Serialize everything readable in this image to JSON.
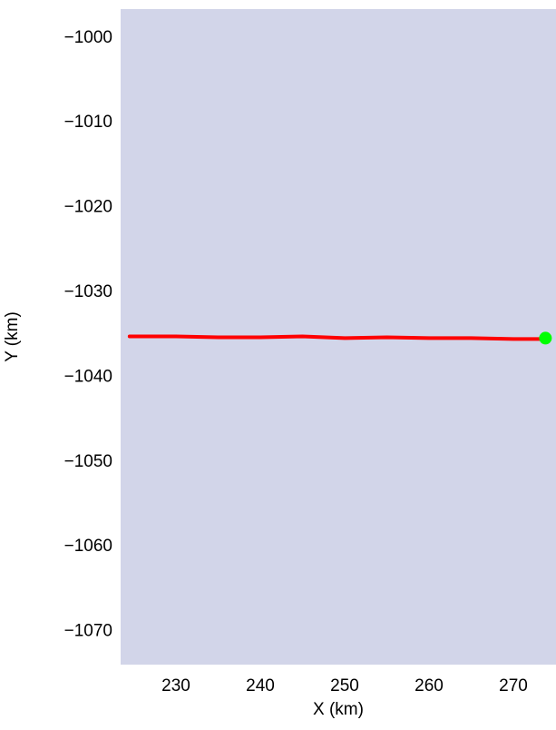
{
  "chart_data": {
    "type": "line",
    "xlabel": "X (km)",
    "ylabel": "Y (km)",
    "background": "#d2d5e9",
    "xlim": [
      223.44,
      275.05
    ],
    "ylim": [
      -1073.9,
      -996.6
    ],
    "xticks": [
      230,
      240,
      250,
      260,
      270
    ],
    "yticks": [
      {
        "value": -1000,
        "label": "−1000"
      },
      {
        "value": -1010,
        "label": "−1010"
      },
      {
        "value": -1020,
        "label": "−1020"
      },
      {
        "value": -1030,
        "label": "−1030"
      },
      {
        "value": -1040,
        "label": "−1040"
      },
      {
        "value": -1050,
        "label": "−1050"
      },
      {
        "value": -1060,
        "label": "−1060"
      },
      {
        "value": -1070,
        "label": "−1070"
      }
    ],
    "x": [
      224.5,
      230,
      235,
      240,
      245,
      250,
      255,
      260,
      265,
      270,
      274
    ],
    "series": [
      {
        "color": "#ff0000",
        "values": [
          -1035.2,
          -1035.2,
          -1035.3,
          -1035.3,
          -1035.2,
          -1035.4,
          -1035.3,
          -1035.4,
          -1035.4,
          -1035.5,
          -1035.5
        ]
      }
    ],
    "marker": {
      "x": 273.8,
      "y": -1035.4,
      "color": "#00ff00"
    }
  }
}
